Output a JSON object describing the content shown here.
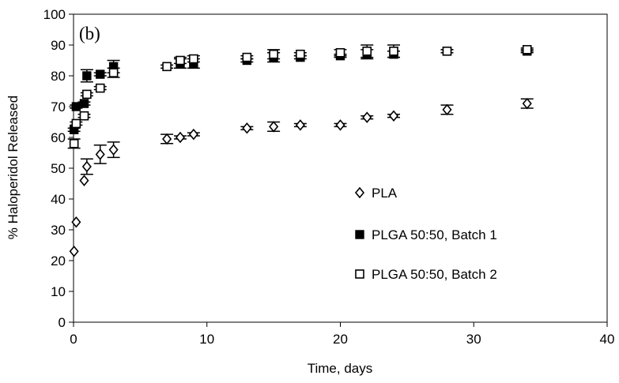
{
  "chart_data": {
    "type": "scatter",
    "panel_label": "(b)",
    "title": "",
    "xlabel": "Time, days",
    "ylabel": "% Haloperidol Released",
    "xlim": [
      0,
      40
    ],
    "ylim": [
      0,
      100
    ],
    "x_ticks": [
      0,
      10,
      20,
      30,
      40
    ],
    "y_ticks": [
      0,
      10,
      20,
      30,
      40,
      50,
      60,
      70,
      80,
      90,
      100
    ],
    "grid": false,
    "legend_position": "center-right",
    "series": [
      {
        "name": "PLA",
        "marker": "open-diamond",
        "color": "#000000",
        "points": [
          {
            "x": 0.04,
            "y": 23.0,
            "err": 0
          },
          {
            "x": 0.2,
            "y": 32.5,
            "err": 0
          },
          {
            "x": 0.8,
            "y": 46.0,
            "err": 0
          },
          {
            "x": 1.0,
            "y": 50.5,
            "err": 2.5
          },
          {
            "x": 2.0,
            "y": 54.5,
            "err": 3.0
          },
          {
            "x": 3.0,
            "y": 56.0,
            "err": 2.5
          },
          {
            "x": 7.0,
            "y": 59.5,
            "err": 1.5
          },
          {
            "x": 8.0,
            "y": 60.0,
            "err": 0.5
          },
          {
            "x": 9.0,
            "y": 61.0,
            "err": 0.5
          },
          {
            "x": 13.0,
            "y": 63.0,
            "err": 0.5
          },
          {
            "x": 15.0,
            "y": 63.5,
            "err": 1.5
          },
          {
            "x": 17.0,
            "y": 64.0,
            "err": 0.5
          },
          {
            "x": 20.0,
            "y": 64.0,
            "err": 0.5
          },
          {
            "x": 22.0,
            "y": 66.5,
            "err": 0.5
          },
          {
            "x": 24.0,
            "y": 67.0,
            "err": 0.5
          },
          {
            "x": 28.0,
            "y": 69.0,
            "err": 1.5
          },
          {
            "x": 34.0,
            "y": 71.0,
            "err": 1.5
          }
        ]
      },
      {
        "name": "PLGA 50:50, Batch 1",
        "marker": "filled-square",
        "color": "#000000",
        "points": [
          {
            "x": 0.04,
            "y": 62.5,
            "err": 0.5
          },
          {
            "x": 0.2,
            "y": 70.0,
            "err": 0.5
          },
          {
            "x": 0.8,
            "y": 71.0,
            "err": 0.5
          },
          {
            "x": 1.0,
            "y": 80.0,
            "err": 2.0
          },
          {
            "x": 2.0,
            "y": 80.5,
            "err": 0.5
          },
          {
            "x": 3.0,
            "y": 83.0,
            "err": 2.0
          },
          {
            "x": 8.0,
            "y": 84.0,
            "err": 1.5
          },
          {
            "x": 9.0,
            "y": 84.0,
            "err": 1.5
          },
          {
            "x": 13.0,
            "y": 85.0,
            "err": 0.5
          },
          {
            "x": 15.0,
            "y": 86.0,
            "err": 1.5
          },
          {
            "x": 17.0,
            "y": 86.0,
            "err": 0.5
          },
          {
            "x": 20.0,
            "y": 86.5,
            "err": 0.5
          },
          {
            "x": 22.0,
            "y": 87.0,
            "err": 1.5
          },
          {
            "x": 24.0,
            "y": 87.0,
            "err": 1.0
          },
          {
            "x": 28.0,
            "y": 88.0,
            "err": 0.5
          },
          {
            "x": 34.0,
            "y": 88.0,
            "err": 0.5
          }
        ]
      },
      {
        "name": "PLGA 50:50, Batch 2",
        "marker": "open-square",
        "color": "#000000",
        "points": [
          {
            "x": 0.04,
            "y": 58.0,
            "err": 1.5
          },
          {
            "x": 0.2,
            "y": 64.5,
            "err": 0.5
          },
          {
            "x": 0.8,
            "y": 67.0,
            "err": 0.5
          },
          {
            "x": 1.0,
            "y": 74.0,
            "err": 0.5
          },
          {
            "x": 2.0,
            "y": 76.0,
            "err": 0.5
          },
          {
            "x": 3.0,
            "y": 81.0,
            "err": 1.5
          },
          {
            "x": 7.0,
            "y": 83.0,
            "err": 0.5
          },
          {
            "x": 8.0,
            "y": 85.0,
            "err": 1.0
          },
          {
            "x": 9.0,
            "y": 85.5,
            "err": 1.0
          },
          {
            "x": 13.0,
            "y": 86.0,
            "err": 0.5
          },
          {
            "x": 15.0,
            "y": 87.0,
            "err": 1.5
          },
          {
            "x": 17.0,
            "y": 87.0,
            "err": 0.5
          },
          {
            "x": 20.0,
            "y": 87.5,
            "err": 1.0
          },
          {
            "x": 22.0,
            "y": 88.0,
            "err": 2.0
          },
          {
            "x": 24.0,
            "y": 88.0,
            "err": 2.0
          },
          {
            "x": 28.0,
            "y": 88.0,
            "err": 0.5
          },
          {
            "x": 34.0,
            "y": 88.5,
            "err": 0.5
          }
        ]
      }
    ]
  }
}
